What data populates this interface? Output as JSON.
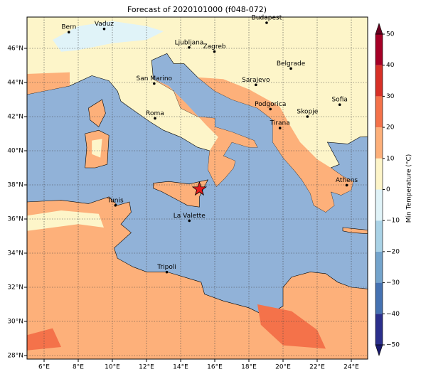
{
  "title": "Forecast of 2020101000 (f048-072)",
  "map": {
    "lon_ticks": [
      {
        "value": 6,
        "label": "6°E"
      },
      {
        "value": 8,
        "label": "8°E"
      },
      {
        "value": 10,
        "label": "10°E"
      },
      {
        "value": 12,
        "label": "12°E"
      },
      {
        "value": 14,
        "label": "14°E"
      },
      {
        "value": 16,
        "label": "16°E"
      },
      {
        "value": 18,
        "label": "18°E"
      },
      {
        "value": 20,
        "label": "20°E"
      },
      {
        "value": 22,
        "label": "22°E"
      },
      {
        "value": 24,
        "label": "24°E"
      }
    ],
    "lat_ticks": [
      {
        "value": 28,
        "label": "28°N"
      },
      {
        "value": 30,
        "label": "30°N"
      },
      {
        "value": 32,
        "label": "32°N"
      },
      {
        "value": 34,
        "label": "34°N"
      },
      {
        "value": 36,
        "label": "36°N"
      },
      {
        "value": 38,
        "label": "38°N"
      },
      {
        "value": 40,
        "label": "40°N"
      },
      {
        "value": 42,
        "label": "42°N"
      },
      {
        "value": 44,
        "label": "44°N"
      },
      {
        "value": 46,
        "label": "46°N"
      }
    ],
    "grid": true,
    "cities": [
      "Bern",
      "Vaduz",
      "Budapest",
      "Ljubljana",
      "Zagreb",
      "Belgrade",
      "San Marino",
      "Sarajevo",
      "Sofia",
      "Roma",
      "Podgorica",
      "Skopje",
      "Tirana",
      "Athens",
      "Tunis",
      "La Valette",
      "Tripoli"
    ]
  },
  "colorbar": {
    "label": "Min Temperature (°C)",
    "ticks": [
      {
        "value": -50,
        "label": "−50"
      },
      {
        "value": -40,
        "label": "−40"
      },
      {
        "value": -30,
        "label": "−30"
      },
      {
        "value": -20,
        "label": "−20"
      },
      {
        "value": -10,
        "label": "−10"
      },
      0,
      10,
      20,
      30,
      40,
      50
    ],
    "colors": [
      "#2b2f8c",
      "#4572b2",
      "#74a4cc",
      "#a9d2e6",
      "#e0f3f8",
      "#fdf5c9",
      "#fdb07a",
      "#f4724a",
      "#d73027",
      "#a50026"
    ],
    "under_color": "#1a1a6e",
    "over_color": "#6a0020"
  }
}
